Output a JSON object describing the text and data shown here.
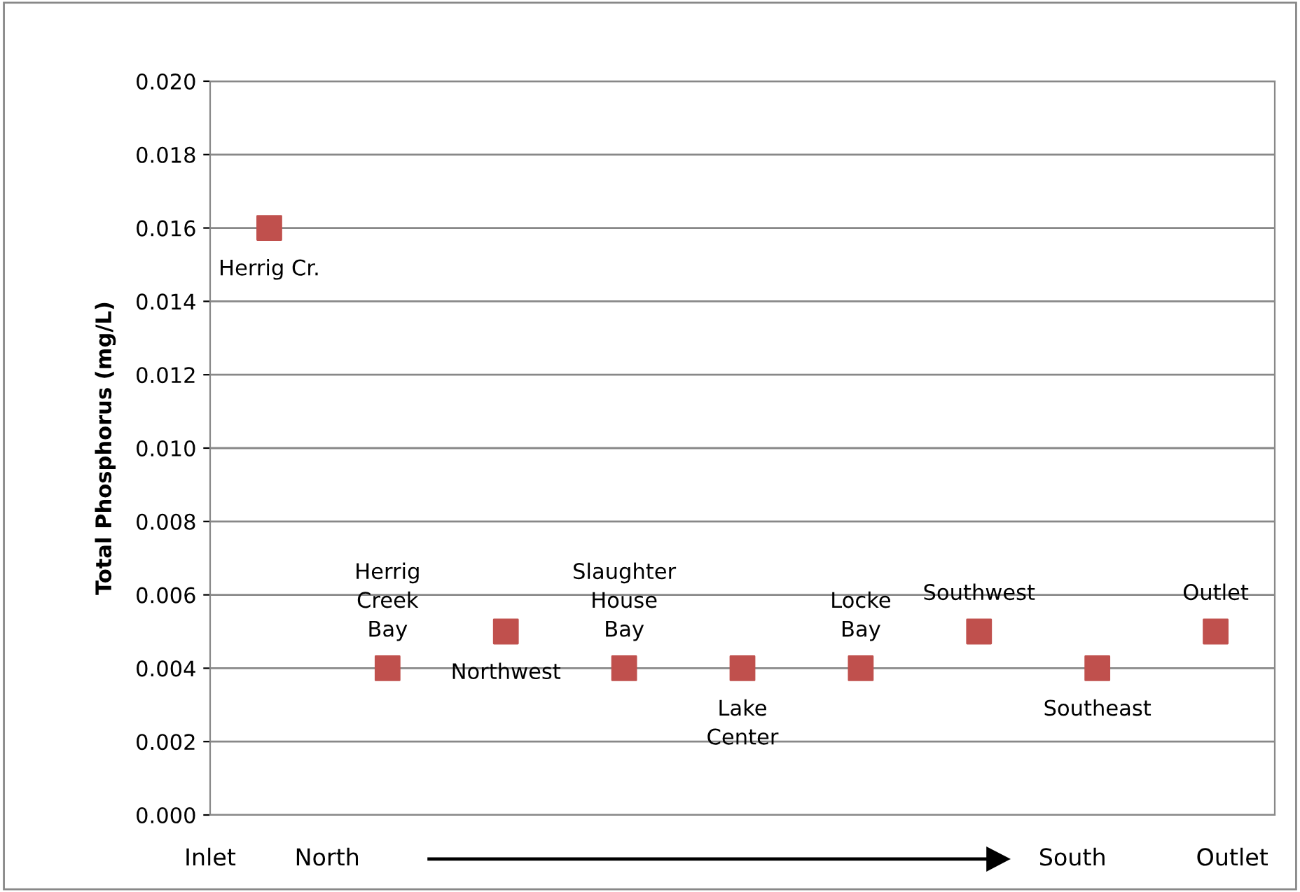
{
  "chart_data": {
    "type": "scatter",
    "ylabel": "Total Phosphorus (mg/L)",
    "categories": [
      null,
      null,
      null,
      null,
      null,
      null,
      null,
      null,
      null
    ],
    "series": [
      {
        "color": "#c0504d",
        "values": [
          0.016,
          0.004,
          0.005,
          0.004,
          0.004,
          0.004,
          0.005,
          0.004,
          0.005
        ],
        "value_labels": [
          "Herrig Cr.",
          "Herrig\nCreek\nBay",
          "Northwest",
          "Slaughter\nHouse\nBay",
          "Lake\nCenter",
          "Locke\nBay",
          "Southwest",
          "Southeast",
          "Outlet"
        ]
      }
    ],
    "marker": "square",
    "ylim": [
      0,
      0.02
    ],
    "yticks": [
      {
        "value": 0,
        "label": "0.000"
      },
      {
        "value": 0.002,
        "label": "0.002"
      },
      {
        "value": 0.004,
        "label": "0.004"
      },
      {
        "value": 0.006,
        "label": "0.006"
      },
      {
        "value": 0.008,
        "label": "0.008"
      },
      {
        "value": 0.01,
        "label": "0.010"
      },
      {
        "value": 0.012,
        "label": "0.012"
      },
      {
        "value": 0.014,
        "label": "0.014"
      },
      {
        "value": 0.016,
        "label": "0.016"
      },
      {
        "value": 0.018,
        "label": "0.018"
      },
      {
        "value": 0.02,
        "label": "0.020"
      }
    ],
    "grid": "y",
    "annotations": [
      "Inlet",
      "North",
      "South",
      "Outlet"
    ]
  }
}
